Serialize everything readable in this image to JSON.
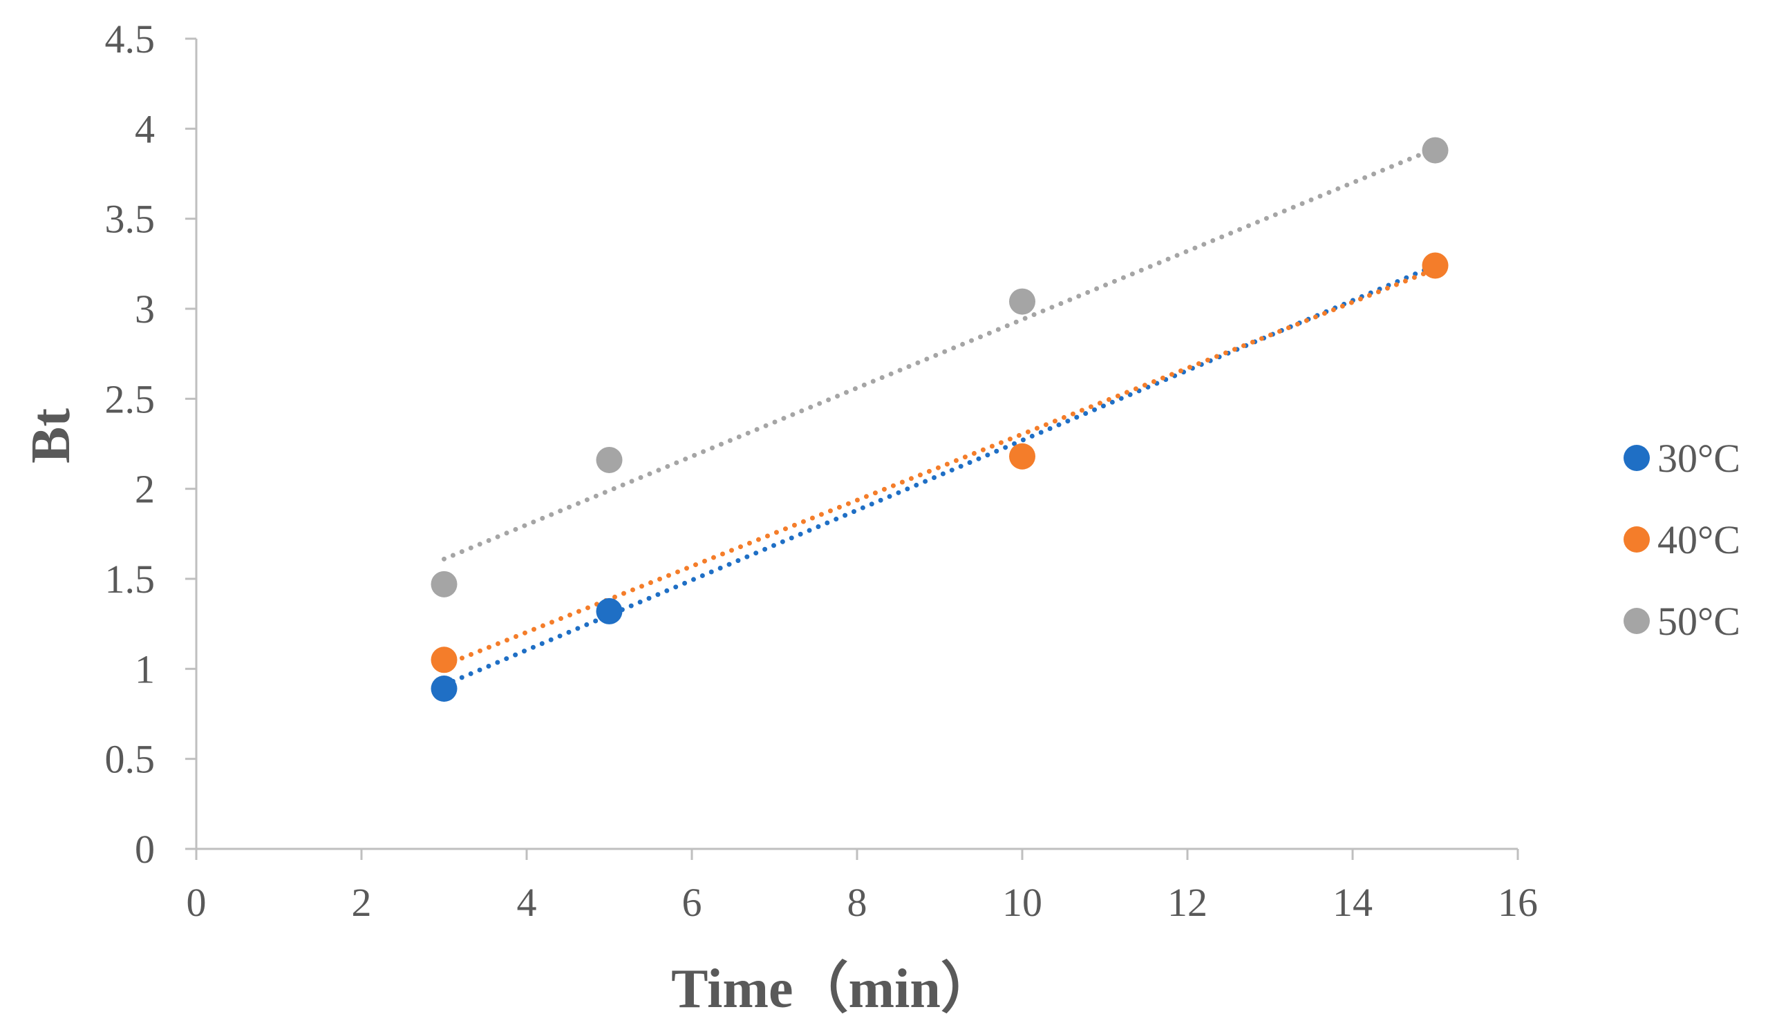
{
  "chart_data": {
    "type": "scatter",
    "title": "",
    "xlabel": "Time（min）",
    "ylabel": "Bt",
    "xlim": [
      0,
      16
    ],
    "ylim": [
      0,
      4.5
    ],
    "xticks": [
      0,
      2,
      4,
      6,
      8,
      10,
      12,
      14,
      16
    ],
    "yticks": [
      0,
      0.5,
      1,
      1.5,
      2,
      2.5,
      3,
      3.5,
      4,
      4.5
    ],
    "xtick_labels": [
      "0",
      "2",
      "4",
      "6",
      "8",
      "10",
      "12",
      "14",
      "16"
    ],
    "ytick_labels": [
      "0",
      "0.5",
      "1",
      "1.5",
      "2",
      "2.5",
      "3",
      "3.5",
      "4",
      "4.5"
    ],
    "grid": false,
    "legend_position": "right",
    "trendline": "linear, dotted",
    "series": [
      {
        "name": "30°C",
        "color": "#1f6fc5",
        "x": [
          3,
          5,
          10,
          15
        ],
        "y": [
          0.89,
          1.32,
          2.18,
          3.24
        ],
        "fit": [
          [
            3,
            0.91
          ],
          [
            15,
            3.24
          ]
        ]
      },
      {
        "name": "40°C",
        "color": "#f47d2a",
        "x": [
          3,
          5,
          10,
          15
        ],
        "y": [
          1.05,
          1.32,
          2.18,
          3.24
        ],
        "fit": [
          [
            3,
            1.02
          ],
          [
            15,
            3.22
          ]
        ]
      },
      {
        "name": "50°C",
        "color": "#a5a5a5",
        "x": [
          3,
          5,
          10,
          15
        ],
        "y": [
          1.47,
          2.16,
          3.04,
          3.88
        ],
        "fit": [
          [
            3,
            1.61
          ],
          [
            15,
            3.89
          ]
        ]
      }
    ]
  }
}
